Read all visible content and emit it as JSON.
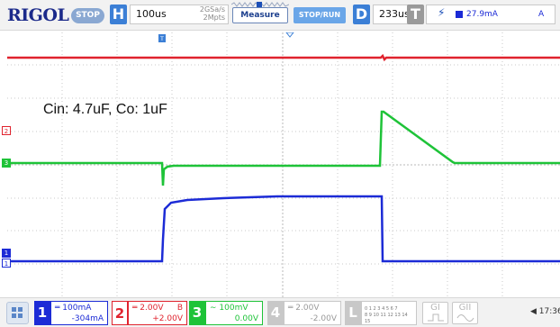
{
  "header": {
    "brand": "RIGOL",
    "run_state": "STOP",
    "horizontal": {
      "letter": "H",
      "timebase": "100us",
      "sample_rate": "2GSa/s",
      "memory_depth": "2Mpts"
    },
    "measure_label": "Measure",
    "stoprun_label": "STOP/RUN",
    "delay": {
      "letter": "D",
      "value": "233us"
    },
    "trigger": {
      "letter": "T",
      "level": "27.9mA",
      "mode": "A",
      "edge_icon": "rising-edge-icon",
      "source_color": "#1b2ad6"
    }
  },
  "annotation": "Cin: 4.7uF, Co: 1uF",
  "channels": [
    {
      "num": "1",
      "scale": "100mA",
      "offset": "-304mA",
      "color": "#1c2bd6",
      "coupling_icon": "dc-coupling-icon",
      "marker": "1"
    },
    {
      "num": "2",
      "scale": "2.00V",
      "offset": "+2.00V",
      "bandwidth": "B",
      "color": "#e0232e",
      "coupling_icon": "dc-coupling-icon",
      "marker": "2"
    },
    {
      "num": "3",
      "scale": "100mV",
      "offset": "0.00V",
      "color": "#1ec338",
      "coupling_icon": "ac-coupling-icon",
      "marker": "3"
    },
    {
      "num": "4",
      "scale": "2.00V",
      "offset": "-2.00V",
      "color": "#b8b8b8",
      "coupling_icon": "dc-coupling-icon"
    }
  ],
  "logic": {
    "letter": "L",
    "bits_row1": "0 1 2 3  4 5 6 7",
    "bits_row2": "8 9 10 11 12 13 14 15"
  },
  "generators": [
    {
      "label": "GI",
      "icon": "pulse-icon"
    },
    {
      "label": "GII",
      "icon": "sine-icon"
    }
  ],
  "status": {
    "sound_icon": "speaker-icon",
    "time": "17:36"
  }
}
